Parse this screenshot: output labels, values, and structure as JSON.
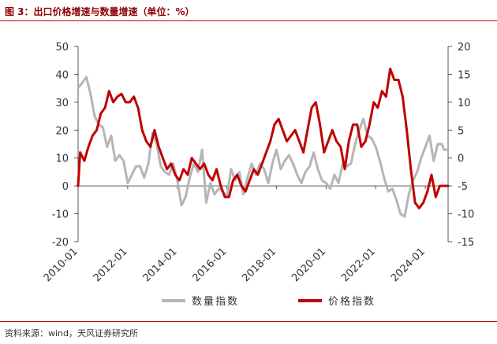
{
  "title": "图 3：出口价格增速与数量增速（单位：%）",
  "source": "资料来源：wind，天风证券研究所",
  "colors": {
    "quantity": "#b5b5b5",
    "price": "#c00000",
    "accent": "#c00000"
  },
  "chart_data": {
    "type": "line",
    "x_tick_labels": [
      "2010-01",
      "2012-01",
      "2014-01",
      "2016-01",
      "2018-01",
      "2020-01",
      "2022-01",
      "2024-01"
    ],
    "x_range": [
      "2010-01",
      "2024-12"
    ],
    "y_left": {
      "lim": [
        -20,
        50
      ],
      "ticks": [
        -20,
        -10,
        0,
        10,
        20,
        30,
        40,
        50
      ]
    },
    "y_right": {
      "lim": [
        -15,
        20
      ],
      "ticks": [
        -15,
        -10,
        -5,
        0,
        5,
        10,
        15,
        20
      ]
    },
    "grid": false,
    "legend_position": "bottom",
    "series": [
      {
        "name": "数量指数",
        "axis": "left",
        "color": "#b5b5b5",
        "points": [
          [
            "2010-01",
            35
          ],
          [
            "2010-03",
            37
          ],
          [
            "2010-05",
            39
          ],
          [
            "2010-07",
            33
          ],
          [
            "2010-09",
            25
          ],
          [
            "2010-11",
            22
          ],
          [
            "2011-01",
            21
          ],
          [
            "2011-03",
            14
          ],
          [
            "2011-05",
            18
          ],
          [
            "2011-07",
            9
          ],
          [
            "2011-09",
            11
          ],
          [
            "2011-11",
            9
          ],
          [
            "2012-01",
            1
          ],
          [
            "2012-03",
            4
          ],
          [
            "2012-05",
            7
          ],
          [
            "2012-07",
            7
          ],
          [
            "2012-09",
            3
          ],
          [
            "2012-11",
            8
          ],
          [
            "2013-01",
            19
          ],
          [
            "2013-03",
            15
          ],
          [
            "2013-05",
            7
          ],
          [
            "2013-07",
            5
          ],
          [
            "2013-09",
            4
          ],
          [
            "2013-11",
            8
          ],
          [
            "2014-01",
            2
          ],
          [
            "2014-03",
            -7
          ],
          [
            "2014-05",
            -4
          ],
          [
            "2014-07",
            3
          ],
          [
            "2014-09",
            8
          ],
          [
            "2014-11",
            5
          ],
          [
            "2015-01",
            13
          ],
          [
            "2015-03",
            -6
          ],
          [
            "2015-05",
            1
          ],
          [
            "2015-07",
            -3
          ],
          [
            "2015-09",
            -1
          ],
          [
            "2015-11",
            -2
          ],
          [
            "2016-01",
            -4
          ],
          [
            "2016-03",
            6
          ],
          [
            "2016-05",
            2
          ],
          [
            "2016-07",
            5
          ],
          [
            "2016-09",
            -3
          ],
          [
            "2016-11",
            3
          ],
          [
            "2017-01",
            8
          ],
          [
            "2017-03",
            4
          ],
          [
            "2017-05",
            8
          ],
          [
            "2017-07",
            6
          ],
          [
            "2017-09",
            1
          ],
          [
            "2017-11",
            8
          ],
          [
            "2018-01",
            13
          ],
          [
            "2018-03",
            6
          ],
          [
            "2018-05",
            9
          ],
          [
            "2018-07",
            11
          ],
          [
            "2018-09",
            8
          ],
          [
            "2018-11",
            4
          ],
          [
            "2019-01",
            1
          ],
          [
            "2019-03",
            5
          ],
          [
            "2019-05",
            7
          ],
          [
            "2019-07",
            12
          ],
          [
            "2019-09",
            6
          ],
          [
            "2019-11",
            2
          ],
          [
            "2020-01",
            1
          ],
          [
            "2020-03",
            -1
          ],
          [
            "2020-05",
            4
          ],
          [
            "2020-07",
            1
          ],
          [
            "2020-09",
            8
          ],
          [
            "2020-11",
            7
          ],
          [
            "2021-01",
            8
          ],
          [
            "2021-03",
            15
          ],
          [
            "2021-05",
            20
          ],
          [
            "2021-07",
            24
          ],
          [
            "2021-09",
            18
          ],
          [
            "2021-11",
            17
          ],
          [
            "2022-01",
            14
          ],
          [
            "2022-03",
            9
          ],
          [
            "2022-05",
            3
          ],
          [
            "2022-07",
            -2
          ],
          [
            "2022-09",
            -1
          ],
          [
            "2022-11",
            -5
          ],
          [
            "2023-01",
            -10
          ],
          [
            "2023-03",
            -11
          ],
          [
            "2023-05",
            -3
          ],
          [
            "2023-07",
            2
          ],
          [
            "2023-09",
            5
          ],
          [
            "2023-11",
            10
          ],
          [
            "2024-01",
            14
          ],
          [
            "2024-03",
            18
          ],
          [
            "2024-05",
            9
          ],
          [
            "2024-07",
            15
          ],
          [
            "2024-09",
            15
          ],
          [
            "2024-10",
            13
          ],
          [
            "2024-12",
            13
          ]
        ]
      },
      {
        "name": "价格指数",
        "axis": "right",
        "color": "#c00000",
        "points": [
          [
            "2010-01",
            -5
          ],
          [
            "2010-02",
            1
          ],
          [
            "2010-04",
            -0.5
          ],
          [
            "2010-06",
            2
          ],
          [
            "2010-08",
            4
          ],
          [
            "2010-10",
            5
          ],
          [
            "2010-12",
            8
          ],
          [
            "2011-02",
            9
          ],
          [
            "2011-04",
            12
          ],
          [
            "2011-06",
            10
          ],
          [
            "2011-08",
            11
          ],
          [
            "2011-10",
            11.5
          ],
          [
            "2011-12",
            10
          ],
          [
            "2012-02",
            10
          ],
          [
            "2012-04",
            11
          ],
          [
            "2012-06",
            9
          ],
          [
            "2012-08",
            5
          ],
          [
            "2012-10",
            3
          ],
          [
            "2012-12",
            2
          ],
          [
            "2013-02",
            5
          ],
          [
            "2013-04",
            2
          ],
          [
            "2013-06",
            0
          ],
          [
            "2013-08",
            -2
          ],
          [
            "2013-10",
            -1
          ],
          [
            "2013-12",
            -3
          ],
          [
            "2014-02",
            -4
          ],
          [
            "2014-04",
            -2
          ],
          [
            "2014-06",
            -3
          ],
          [
            "2014-08",
            0
          ],
          [
            "2014-10",
            -1
          ],
          [
            "2014-12",
            -2
          ],
          [
            "2015-02",
            -1
          ],
          [
            "2015-04",
            -3
          ],
          [
            "2015-06",
            -4
          ],
          [
            "2015-08",
            -2
          ],
          [
            "2015-10",
            -5
          ],
          [
            "2015-12",
            -7
          ],
          [
            "2016-02",
            -7
          ],
          [
            "2016-04",
            -4
          ],
          [
            "2016-06",
            -3
          ],
          [
            "2016-08",
            -5
          ],
          [
            "2016-10",
            -6
          ],
          [
            "2016-12",
            -4
          ],
          [
            "2017-02",
            -2
          ],
          [
            "2017-04",
            -3
          ],
          [
            "2017-06",
            -1
          ],
          [
            "2017-08",
            1
          ],
          [
            "2017-10",
            3
          ],
          [
            "2017-12",
            6
          ],
          [
            "2018-02",
            7
          ],
          [
            "2018-04",
            5
          ],
          [
            "2018-06",
            3
          ],
          [
            "2018-08",
            4
          ],
          [
            "2018-10",
            5
          ],
          [
            "2018-12",
            3
          ],
          [
            "2019-02",
            1
          ],
          [
            "2019-04",
            5
          ],
          [
            "2019-06",
            9
          ],
          [
            "2019-08",
            10
          ],
          [
            "2019-10",
            6
          ],
          [
            "2019-12",
            1
          ],
          [
            "2020-02",
            3
          ],
          [
            "2020-04",
            5
          ],
          [
            "2020-06",
            3
          ],
          [
            "2020-08",
            2
          ],
          [
            "2020-10",
            -2
          ],
          [
            "2020-12",
            3
          ],
          [
            "2021-02",
            6
          ],
          [
            "2021-04",
            6
          ],
          [
            "2021-06",
            2
          ],
          [
            "2021-08",
            3
          ],
          [
            "2021-10",
            6
          ],
          [
            "2021-12",
            10
          ],
          [
            "2022-02",
            9
          ],
          [
            "2022-04",
            12
          ],
          [
            "2022-06",
            11
          ],
          [
            "2022-08",
            16
          ],
          [
            "2022-10",
            14
          ],
          [
            "2022-12",
            14
          ],
          [
            "2023-02",
            11
          ],
          [
            "2023-04",
            5
          ],
          [
            "2023-06",
            -2
          ],
          [
            "2023-08",
            -8
          ],
          [
            "2023-10",
            -9
          ],
          [
            "2023-12",
            -8
          ],
          [
            "2024-02",
            -6
          ],
          [
            "2024-04",
            -3
          ],
          [
            "2024-06",
            -7
          ],
          [
            "2024-08",
            -5
          ],
          [
            "2024-10",
            -5
          ],
          [
            "2024-12",
            -5
          ]
        ]
      }
    ]
  }
}
